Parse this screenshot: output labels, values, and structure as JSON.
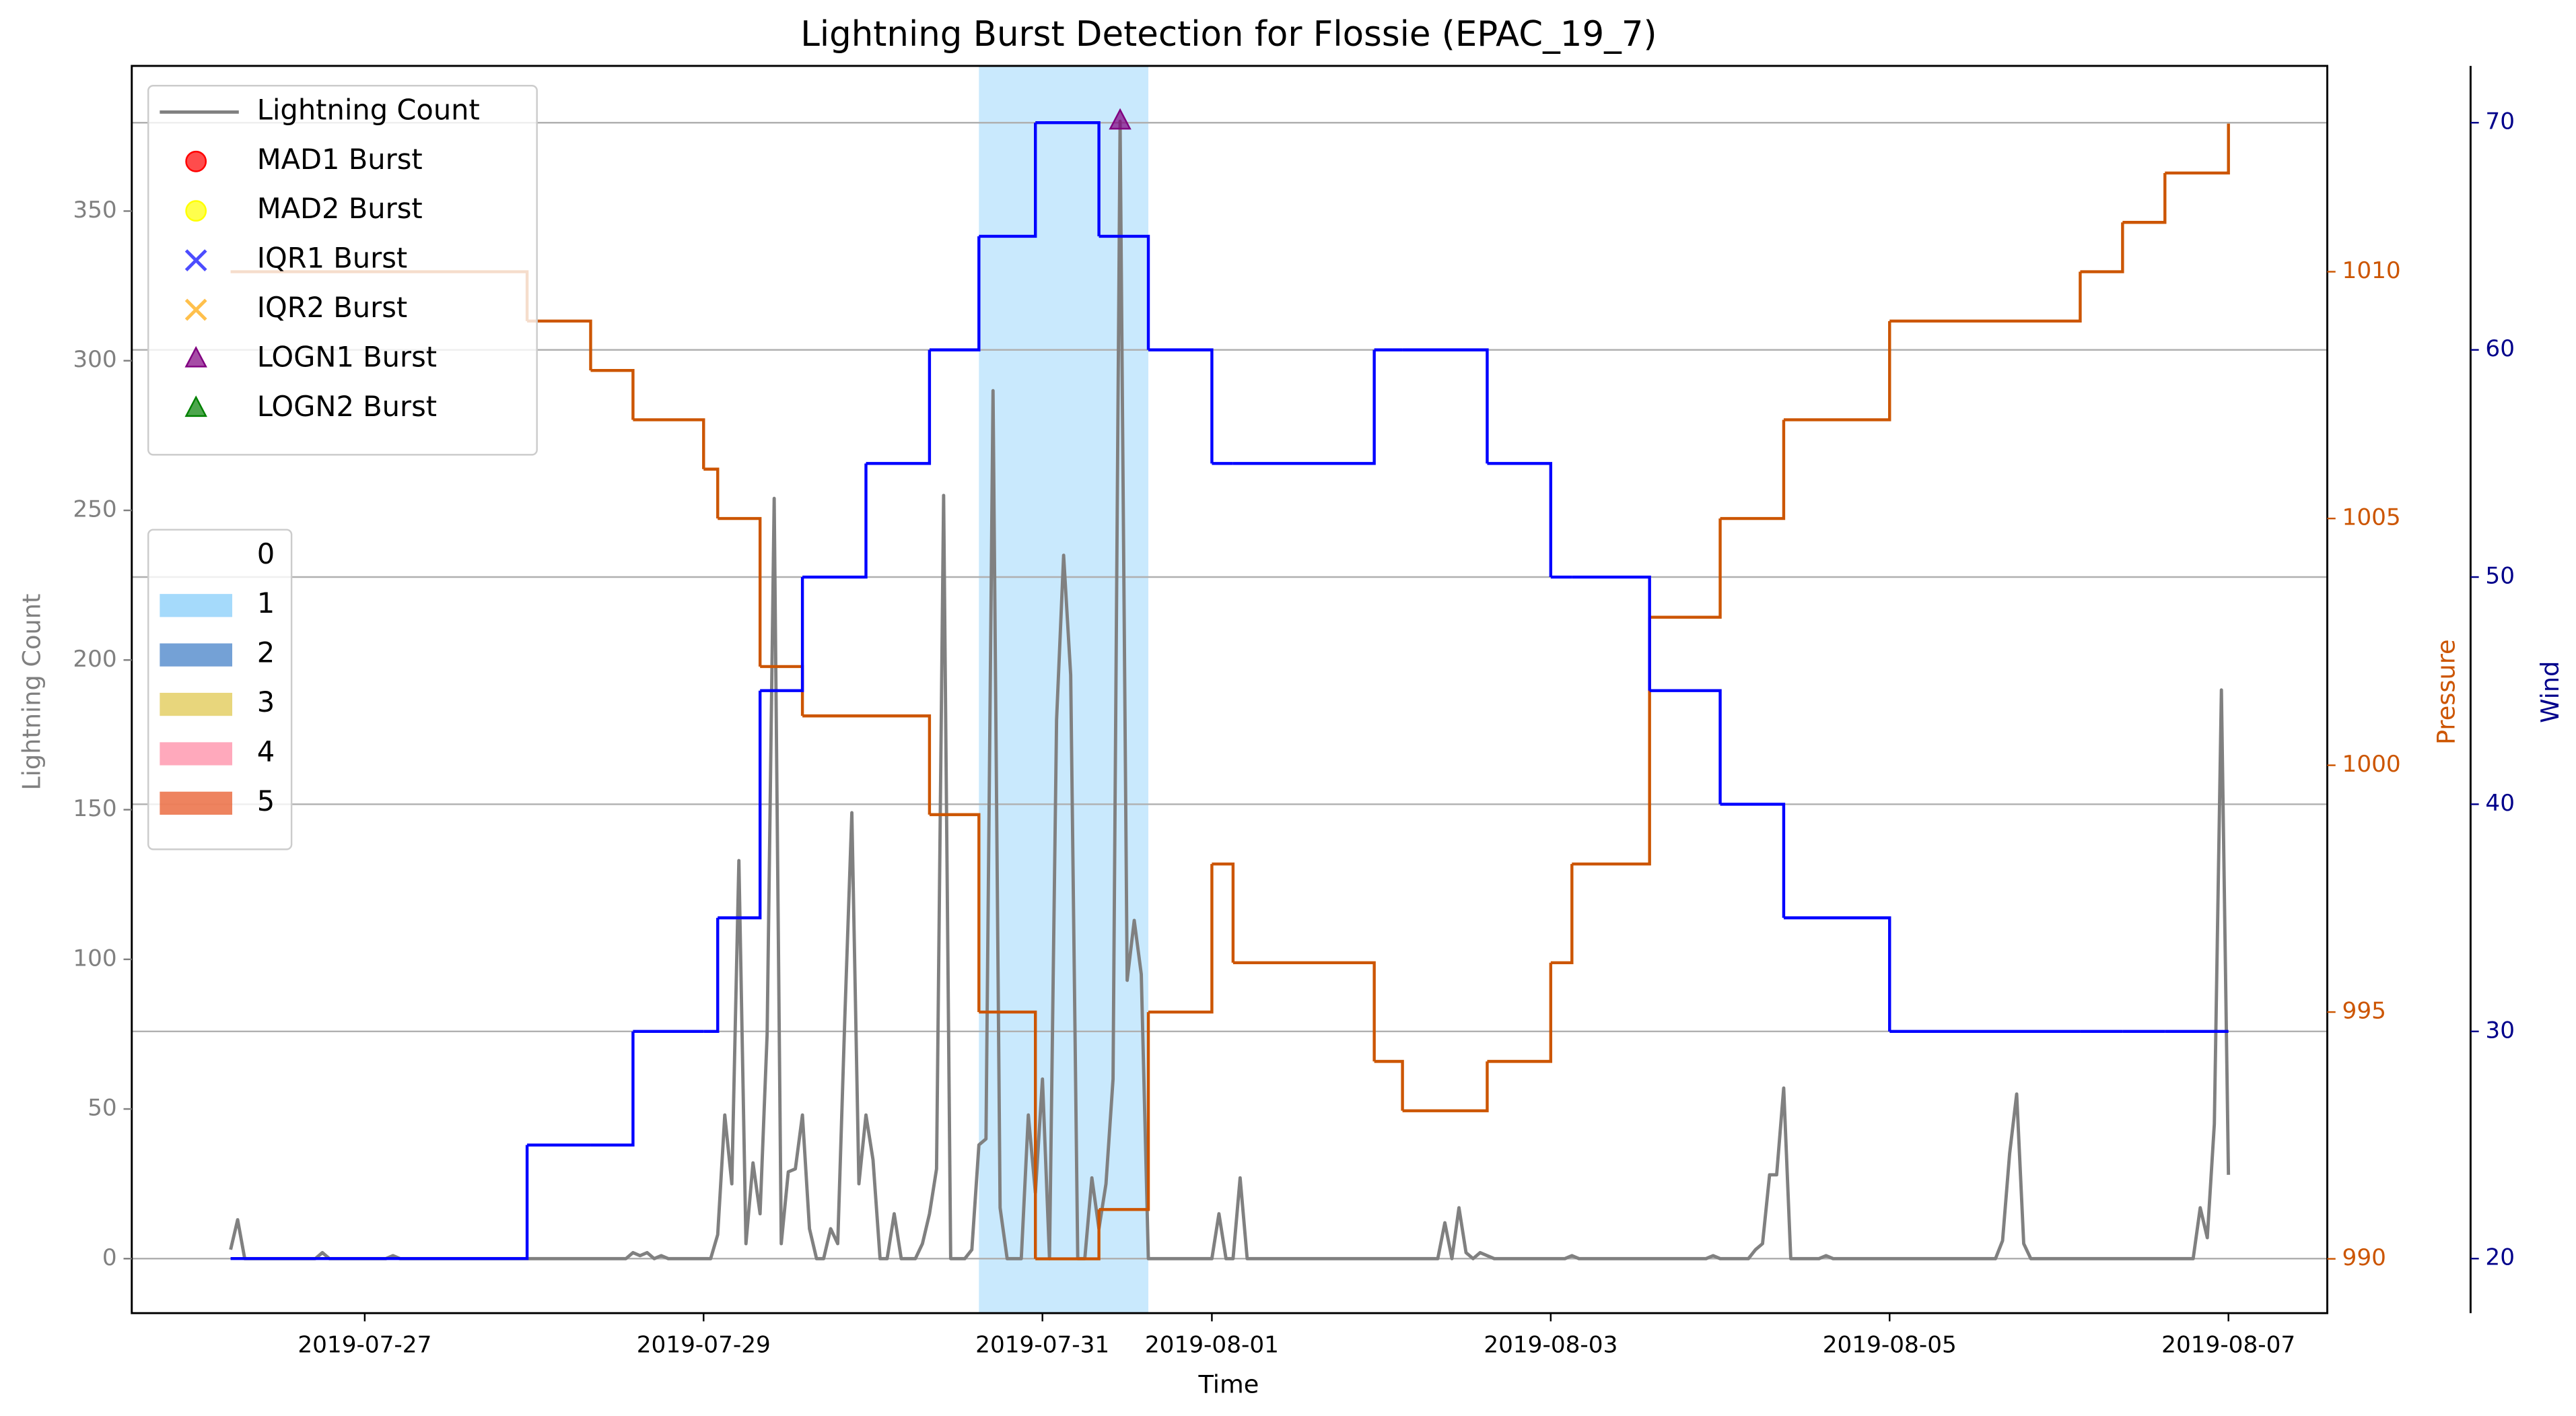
{
  "chart_data": {
    "type": "line",
    "title": "Lightning Burst Detection for Flossie (EPAC_19_7)",
    "xlabel": "Time",
    "ylabel": "Lightning Count",
    "y2label": "Pressure",
    "y3label": "Wind",
    "xlim": [
      "2019-07-25T15:00",
      "2019-08-07T14:00"
    ],
    "xticks": [
      "2019-07-27",
      "2019-07-29",
      "2019-07-31",
      "2019-08-01",
      "2019-08-03",
      "2019-08-05",
      "2019-08-07"
    ],
    "ylim": [
      -18.2,
      398.5
    ],
    "yticks": [
      0,
      50,
      100,
      150,
      200,
      250,
      300,
      350
    ],
    "y2lim": [
      988.9,
      1014.17
    ],
    "y2ticks": [
      990,
      995,
      1000,
      1005,
      1010
    ],
    "y3lim": [
      17.6,
      72.5
    ],
    "y3ticks": [
      20,
      30,
      40,
      50,
      60,
      70
    ],
    "grid": "y3",
    "legend": "upper left",
    "series": [
      {
        "name": "Lightning Count",
        "color": "#808080",
        "x": [
          "2019-07-26T05:00",
          "2019-07-26T06:00",
          "2019-07-26T07:00",
          "2019-07-26T17:00",
          "2019-07-26T18:00",
          "2019-07-26T19:00",
          "2019-07-27T03:00",
          "2019-07-27T04:00",
          "2019-07-27T05:00",
          "2019-07-28T13:00",
          "2019-07-28T14:00",
          "2019-07-28T15:00",
          "2019-07-28T16:00",
          "2019-07-28T17:00",
          "2019-07-28T18:00",
          "2019-07-28T19:00",
          "2019-07-29T01:00",
          "2019-07-29T02:00",
          "2019-07-29T03:00",
          "2019-07-29T04:00",
          "2019-07-29T05:00",
          "2019-07-29T06:00",
          "2019-07-29T07:00",
          "2019-07-29T08:00",
          "2019-07-29T09:00",
          "2019-07-29T10:00",
          "2019-07-29T11:00",
          "2019-07-29T12:00",
          "2019-07-29T13:00",
          "2019-07-29T14:00",
          "2019-07-29T15:00",
          "2019-07-29T16:00",
          "2019-07-29T17:00",
          "2019-07-29T18:00",
          "2019-07-29T19:00",
          "2019-07-29T20:00",
          "2019-07-29T21:00",
          "2019-07-29T22:00",
          "2019-07-29T23:00",
          "2019-07-30T00:00",
          "2019-07-30T01:00",
          "2019-07-30T02:00",
          "2019-07-30T03:00",
          "2019-07-30T04:00",
          "2019-07-30T06:00",
          "2019-07-30T07:00",
          "2019-07-30T08:00",
          "2019-07-30T09:00",
          "2019-07-30T10:00",
          "2019-07-30T11:00",
          "2019-07-30T13:00",
          "2019-07-30T14:00",
          "2019-07-30T15:00",
          "2019-07-30T16:00",
          "2019-07-30T17:00",
          "2019-07-30T18:00",
          "2019-07-30T19:00",
          "2019-07-30T21:00",
          "2019-07-30T22:00",
          "2019-07-30T23:00",
          "2019-07-31T00:00",
          "2019-07-31T01:00",
          "2019-07-31T02:00",
          "2019-07-31T03:00",
          "2019-07-31T04:00",
          "2019-07-31T05:00",
          "2019-07-31T06:00",
          "2019-07-31T07:00",
          "2019-07-31T08:00",
          "2019-07-31T09:00",
          "2019-07-31T10:00",
          "2019-07-31T11:00",
          "2019-07-31T12:00",
          "2019-07-31T13:00",
          "2019-07-31T14:00",
          "2019-07-31T15:00",
          "2019-08-01T00:00",
          "2019-08-01T01:00",
          "2019-08-01T02:00",
          "2019-08-01T03:00",
          "2019-08-01T04:00",
          "2019-08-01T05:00",
          "2019-08-02T08:00",
          "2019-08-02T09:00",
          "2019-08-02T10:00",
          "2019-08-02T11:00",
          "2019-08-02T12:00",
          "2019-08-02T13:00",
          "2019-08-02T14:00",
          "2019-08-02T15:00",
          "2019-08-02T16:00",
          "2019-08-03T02:00",
          "2019-08-03T03:00",
          "2019-08-03T04:00",
          "2019-08-03T22:00",
          "2019-08-03T23:00",
          "2019-08-04T00:00",
          "2019-08-04T04:00",
          "2019-08-04T05:00",
          "2019-08-04T06:00",
          "2019-08-04T07:00",
          "2019-08-04T08:00",
          "2019-08-04T09:00",
          "2019-08-04T10:00",
          "2019-08-04T14:00",
          "2019-08-04T15:00",
          "2019-08-04T16:00",
          "2019-08-05T15:00",
          "2019-08-05T16:00",
          "2019-08-05T17:00",
          "2019-08-05T18:00",
          "2019-08-05T19:00",
          "2019-08-05T20:00",
          "2019-08-06T19:00",
          "2019-08-06T20:00",
          "2019-08-06T21:00",
          "2019-08-06T22:00",
          "2019-08-06T23:00",
          "2019-08-07T00:00"
        ],
        "values": [
          3,
          13,
          0,
          0,
          2,
          0,
          0,
          1,
          0,
          0,
          2,
          1,
          2,
          0,
          1,
          0,
          0,
          8,
          48,
          25,
          133,
          5,
          32,
          15,
          75,
          254,
          5,
          29,
          30,
          48,
          10,
          0,
          0,
          10,
          5,
          80,
          149,
          25,
          48,
          33,
          0,
          0,
          15,
          0,
          0,
          5,
          15,
          30,
          255,
          0,
          0,
          3,
          38,
          40,
          290,
          17,
          0,
          0,
          48,
          22,
          60,
          0,
          180,
          235,
          195,
          0,
          0,
          27,
          10,
          25,
          60,
          380,
          93,
          113,
          95,
          0,
          0,
          15,
          0,
          0,
          27,
          0,
          0,
          12,
          0,
          17,
          2,
          0,
          2,
          1,
          0,
          0,
          1,
          0,
          0,
          1,
          0,
          0,
          3,
          5,
          28,
          28,
          57,
          0,
          0,
          1,
          0,
          0,
          6,
          35,
          55,
          5,
          0,
          0,
          17,
          7,
          45,
          190,
          28
        ]
      }
    ],
    "track": {
      "x": [
        "2019-07-26T05:00",
        "2019-07-27T23:00",
        "2019-07-28T08:00",
        "2019-07-28T14:00",
        "2019-07-29T00:00",
        "2019-07-29T02:00",
        "2019-07-29T08:00",
        "2019-07-29T14:00",
        "2019-07-29T23:00",
        "2019-07-30T08:00",
        "2019-07-30T15:00",
        "2019-07-30T23:00",
        "2019-07-31T08:00",
        "2019-07-31T15:00",
        "2019-08-01T00:00",
        "2019-08-01T03:00",
        "2019-08-01T23:00",
        "2019-08-02T03:00",
        "2019-08-02T15:00",
        "2019-08-03T00:00",
        "2019-08-03T03:00",
        "2019-08-03T14:00",
        "2019-08-04T00:00",
        "2019-08-04T09:00",
        "2019-08-05T00:00",
        "2019-08-06T03:00",
        "2019-08-06T09:00",
        "2019-08-06T15:00",
        "2019-08-07T00:00"
      ],
      "pressure": [
        1010,
        1009,
        1008,
        1007,
        1006,
        1005,
        1002,
        1001,
        1001,
        999,
        995,
        990,
        991,
        995,
        998,
        996,
        994,
        993,
        994,
        996,
        998,
        1003,
        1005,
        1007,
        1009,
        1010,
        1011,
        1012,
        1013
      ],
      "wind": [
        20,
        25,
        25,
        30,
        30,
        35,
        45,
        50,
        55,
        60,
        65,
        70,
        65,
        60,
        55,
        55,
        60,
        60,
        55,
        50,
        50,
        45,
        40,
        35,
        30,
        30,
        30,
        30,
        30
      ],
      "pressure_color": "#cc5500",
      "wind_color": "#0000ff",
      "wind_axis_color": "#00008b"
    },
    "bursts": [
      {
        "name": "MAD1 Burst",
        "color": "#ff0000",
        "marker": "o",
        "x": [],
        "values": []
      },
      {
        "name": "MAD2 Burst",
        "color": "#ffff00",
        "marker": "o",
        "x": [],
        "values": []
      },
      {
        "name": "IQR1 Burst",
        "color": "#0000ff",
        "marker": "x",
        "x": [],
        "values": []
      },
      {
        "name": "IQR2 Burst",
        "color": "#ffa500",
        "marker": "x",
        "x": [],
        "values": []
      },
      {
        "name": "LOGN1 Burst",
        "color": "#800080",
        "marker": "^",
        "x": [
          "2019-07-31T11:00"
        ],
        "values": [
          380
        ]
      },
      {
        "name": "LOGN2 Burst",
        "color": "#008000",
        "marker": "^",
        "x": [],
        "values": []
      }
    ],
    "shading": {
      "legend": "center left",
      "labels": [
        "0",
        "1",
        "2",
        "3",
        "4",
        "5"
      ],
      "colors": [
        "none",
        "#87cefa",
        "#4682c8",
        "#e0c850",
        "#ff8ca5",
        "#e85a2a"
      ],
      "spans": [
        {
          "start": "2019-07-30T15:00",
          "end": "2019-07-31T15:00",
          "class": 1
        }
      ]
    }
  }
}
